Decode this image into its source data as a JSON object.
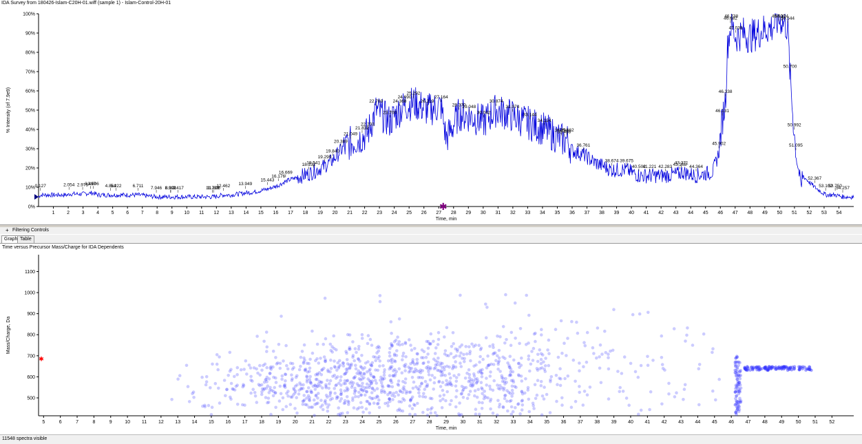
{
  "top_chart": {
    "title": "IDA Survey from 180426-Islam-C20H-01.wiff (sample 1) - Islam-Control-20H-01",
    "xlabel": "Time, min",
    "ylabel": "% Intensity (of 7.9e9)"
  },
  "filtering": {
    "expander": "+",
    "label": "Filtering Controls"
  },
  "tabs": {
    "graph": "Graph",
    "table": "Table"
  },
  "bottom_chart": {
    "title": "Time versus Precursor Mass/Charge for IDA Dependents",
    "xlabel": "Time, min",
    "ylabel": "Mass/Charge, Da"
  },
  "status": {
    "text": "11548 spectra visible"
  },
  "colors": {
    "trace": "#0000dd",
    "scatter": "#3333ff",
    "marker": "#800080",
    "red_marker": "#ff0000"
  },
  "chart_data": [
    {
      "type": "line",
      "title": "IDA Survey from 180426-Islam-C20H-01.wiff (sample 1) - Islam-Control-20H-01",
      "xlabel": "Time, min",
      "ylabel": "% Intensity (of 7.9e9)",
      "xlim": [
        0,
        55
      ],
      "ylim": [
        0,
        100
      ],
      "xticks": [
        1,
        2,
        3,
        4,
        5,
        6,
        7,
        8,
        9,
        10,
        11,
        12,
        13,
        14,
        15,
        16,
        17,
        18,
        19,
        20,
        21,
        22,
        23,
        24,
        25,
        26,
        27,
        28,
        29,
        30,
        31,
        32,
        33,
        34,
        35,
        36,
        37,
        38,
        39,
        40,
        41,
        42,
        43,
        44,
        45,
        46,
        47,
        48,
        49,
        50,
        51,
        52,
        53,
        54
      ],
      "yticks": [
        0,
        10,
        20,
        30,
        40,
        50,
        60,
        70,
        80,
        90,
        100
      ],
      "ytick_labels": [
        "0%",
        "10%",
        "20%",
        "30%",
        "40%",
        "50%",
        "60%",
        "70%",
        "80%",
        "90%",
        "100%"
      ],
      "grid": false,
      "series": [
        {
          "x": [
            0,
            0.127,
            1,
            2,
            2.054,
            2.975,
            3.497,
            3.696,
            4,
            4.864,
            5.222,
            6,
            6.711,
            7.946,
            8.902,
            8.921,
            9.417,
            10,
            11,
            11.739,
            11.806,
            12.462,
            13,
            13.949,
            14.5,
            15.443,
            16.176,
            16.669,
            17,
            18.232,
            18.541,
            19.299,
            19.84,
            20.389,
            21.049,
            21.832,
            22.203,
            22.769,
            23.7,
            24.368,
            24.69,
            25.292,
            26.219,
            27.164,
            27.5,
            28.37,
            29.048,
            30.042,
            30.874,
            31.974,
            33.144,
            34.124,
            35.458,
            35.662,
            36,
            36.761,
            37.5,
            38.674,
            39.675,
            40.502,
            41.221,
            42.283,
            43.268,
            43.371,
            44.364,
            45.5,
            45.902,
            46.131,
            46.338,
            46.5,
            46.682,
            46.738,
            47.038,
            47.5,
            48,
            48.5,
            49,
            49.5,
            49.93,
            50.124,
            50.544,
            50.7,
            51.095,
            51.5,
            50.992,
            52.367,
            53.102,
            53.75,
            54.257,
            55
          ],
          "y": [
            5,
            6,
            6,
            6,
            6.5,
            6.5,
            7,
            7,
            6,
            6,
            6,
            6,
            6,
            5,
            5,
            5,
            5,
            5,
            5,
            5,
            5,
            6,
            6,
            7,
            7.5,
            9,
            11,
            13,
            14,
            17,
            18,
            21,
            24,
            29,
            33,
            36,
            38,
            50,
            44,
            50,
            52,
            54,
            50,
            52,
            35,
            48,
            47,
            44,
            50,
            47,
            43,
            40,
            34,
            35,
            29,
            27,
            23,
            19,
            19,
            16,
            16,
            16,
            17,
            18,
            16,
            18,
            28,
            45,
            55,
            85,
            93,
            95,
            88,
            90,
            88,
            90,
            92,
            93,
            97,
            97,
            93,
            68,
            27,
            9,
            20,
            10,
            6,
            6,
            5,
            5
          ]
        }
      ],
      "peak_labels": [
        "0.127",
        "2.054",
        "2.975",
        "3.497",
        "3.696",
        "4.864",
        "5.222",
        "6.711",
        "7.946",
        "8.902",
        "8.921",
        "9.417",
        "11.739",
        "11.806",
        "12.462",
        "13.949",
        "15.443",
        "16.176",
        "16.669",
        "18.232",
        "18.541",
        "19.299",
        "19.840",
        "20.389",
        "21.049",
        "21.832",
        "22.203",
        "22.769",
        "23.700",
        "24.368",
        "24.690",
        "25.292",
        "26.219",
        "27.164",
        "28.370",
        "29.048",
        "30.042",
        "30.874",
        "31.974",
        "33.144",
        "34.124",
        "35.458",
        "35.662",
        "35.291",
        "36.761",
        "38.674",
        "39.675",
        "40.502",
        "41.221",
        "42.283",
        "43.268",
        "43.371",
        "44.364",
        "45.902",
        "46.131",
        "46.338",
        "46.682",
        "46.738",
        "47.038",
        "49.930",
        "50.124",
        "50.544",
        "50.700",
        "51.095",
        "50.992",
        "52.367",
        "53.102",
        "53.750",
        "54.257"
      ],
      "cursor_time": 27.3
    },
    {
      "type": "scatter",
      "title": "Time versus Precursor Mass/Charge for IDA Dependents",
      "xlabel": "Time, min",
      "ylabel": "Mass/Charge, Da",
      "xlim": [
        4.7,
        53.3
      ],
      "ylim": [
        415,
        1180
      ],
      "xticks": [
        5,
        6,
        7,
        8,
        9,
        10,
        11,
        12,
        13,
        14,
        15,
        16,
        17,
        18,
        19,
        20,
        21,
        22,
        23,
        24,
        25,
        26,
        27,
        28,
        29,
        30,
        31,
        32,
        33,
        34,
        35,
        36,
        37,
        38,
        39,
        40,
        41,
        42,
        43,
        44,
        45,
        46,
        47,
        48,
        49,
        50,
        51,
        52
      ],
      "yticks": [
        500,
        600,
        700,
        800,
        900,
        1000,
        1100
      ],
      "grid": false,
      "density_profile": {
        "x": [
          12.5,
          13,
          14,
          16,
          18,
          20,
          22,
          24,
          26,
          27,
          28,
          30,
          32,
          33,
          34,
          35,
          36,
          37,
          38,
          40,
          42,
          44,
          45.8
        ],
        "relative_density": [
          0.02,
          0.05,
          0.1,
          0.2,
          0.45,
          0.75,
          0.95,
          1,
          1,
          1,
          0.95,
          0.85,
          0.8,
          0.7,
          0.55,
          0.45,
          0.35,
          0.25,
          0.18,
          0.12,
          0.08,
          0.05,
          0.02
        ]
      },
      "vertical_band": {
        "x": 46.4,
        "y": [
          415,
          700
        ]
      },
      "horizontal_band": {
        "x": [
          46.8,
          50.8
        ],
        "y": 640
      },
      "red_marker": {
        "x": 4.7,
        "y": 685
      }
    }
  ]
}
